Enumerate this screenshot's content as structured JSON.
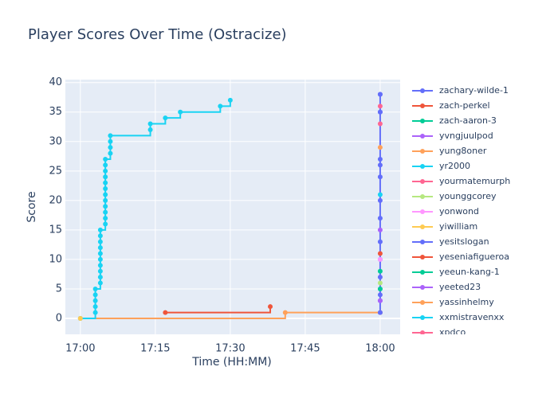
{
  "chart_data": {
    "type": "line",
    "title": "Player Scores Over Time (Ostracize)",
    "x_label": "Time (HH:MM)",
    "y_label": "Score",
    "xlim": [
      "16:57",
      "18:04"
    ],
    "ylim": [
      -2.7,
      40.5
    ],
    "xticks": [
      "17:00",
      "17:15",
      "17:30",
      "17:45",
      "18:00"
    ],
    "yticks": [
      0,
      5,
      10,
      15,
      20,
      25,
      30,
      35,
      40
    ],
    "grid": true,
    "line_shape": "hv",
    "legend": "right",
    "series": [
      {
        "name": "zachary-wilde-1",
        "color": "#636efa",
        "x": [
          "18:00",
          "18:00",
          "18:00",
          "18:00",
          "18:00",
          "18:00",
          "18:00",
          "18:00",
          "18:00",
          "18:00",
          "18:00",
          "18:00",
          "18:00",
          "18:00",
          "18:00",
          "18:00"
        ],
        "values": [
          1,
          3,
          4,
          5,
          7,
          10,
          13,
          17,
          20,
          24,
          26,
          27,
          35,
          35,
          38,
          38
        ]
      },
      {
        "name": "zach-perkel",
        "color": "#EF553B",
        "x": [
          "17:17",
          "17:38"
        ],
        "values": [
          1,
          2
        ]
      },
      {
        "name": "zach-aaron-3",
        "color": "#00cc96",
        "x": [
          "18:00"
        ],
        "values": [
          5
        ]
      },
      {
        "name": "yvngjuulpod",
        "color": "#ab63fa",
        "x": [
          "18:00"
        ],
        "values": [
          3
        ]
      },
      {
        "name": "yung8oner",
        "color": "#FFA15A",
        "x": [
          "17:00",
          "17:41",
          "18:00"
        ],
        "values": [
          0,
          1,
          1
        ]
      },
      {
        "name": "yr2000",
        "color": "#19d3f3",
        "x": [
          "17:00",
          "17:03",
          "17:03",
          "17:03",
          "17:03",
          "17:03",
          "17:04",
          "17:04",
          "17:04",
          "17:04",
          "17:04",
          "17:04",
          "17:04",
          "17:04",
          "17:04",
          "17:04",
          "17:05",
          "17:05",
          "17:05",
          "17:05",
          "17:05",
          "17:05",
          "17:05",
          "17:05",
          "17:05",
          "17:05",
          "17:05",
          "17:05",
          "17:06",
          "17:06",
          "17:06",
          "17:06",
          "17:14",
          "17:14",
          "17:17",
          "17:20",
          "17:28",
          "17:30"
        ],
        "values": [
          0,
          1,
          2,
          3,
          4,
          5,
          6,
          7,
          8,
          9,
          10,
          11,
          12,
          13,
          14,
          15,
          16,
          17,
          18,
          19,
          20,
          21,
          22,
          23,
          24,
          25,
          26,
          27,
          28,
          29,
          30,
          31,
          32,
          33,
          34,
          35,
          36,
          37
        ]
      },
      {
        "name": "yourmatemurph",
        "color": "#FF6692",
        "x": [
          "18:00"
        ],
        "values": [
          36
        ]
      },
      {
        "name": "younggcorey",
        "color": "#B6E880",
        "x": [
          "18:00"
        ],
        "values": [
          6
        ]
      },
      {
        "name": "yonwond",
        "color": "#FF97FF",
        "x": [
          "18:00"
        ],
        "values": [
          10
        ]
      },
      {
        "name": "yiwilliam",
        "color": "#FECB52",
        "x": [
          "17:00"
        ],
        "values": [
          0
        ]
      },
      {
        "name": "yesitslogan",
        "color": "#636efa",
        "x": [
          "18:00"
        ],
        "values": [
          1
        ]
      },
      {
        "name": "yeseniafigueroa",
        "color": "#EF553B",
        "x": [
          "18:00"
        ],
        "values": [
          11
        ]
      },
      {
        "name": "yeeun-kang-1",
        "color": "#00cc96",
        "x": [
          "18:00"
        ],
        "values": [
          8
        ]
      },
      {
        "name": "yeeted23",
        "color": "#ab63fa",
        "x": [
          "18:00"
        ],
        "values": [
          15
        ]
      },
      {
        "name": "yassinhelmy",
        "color": "#FFA15A",
        "x": [
          "18:00"
        ],
        "values": [
          29
        ]
      },
      {
        "name": "xxmistravenxx",
        "color": "#19d3f3",
        "x": [
          "18:00"
        ],
        "values": [
          21
        ]
      },
      {
        "name": "xpdco",
        "color": "#FF6692",
        "x": [
          "18:00"
        ],
        "values": [
          33
        ]
      }
    ]
  }
}
